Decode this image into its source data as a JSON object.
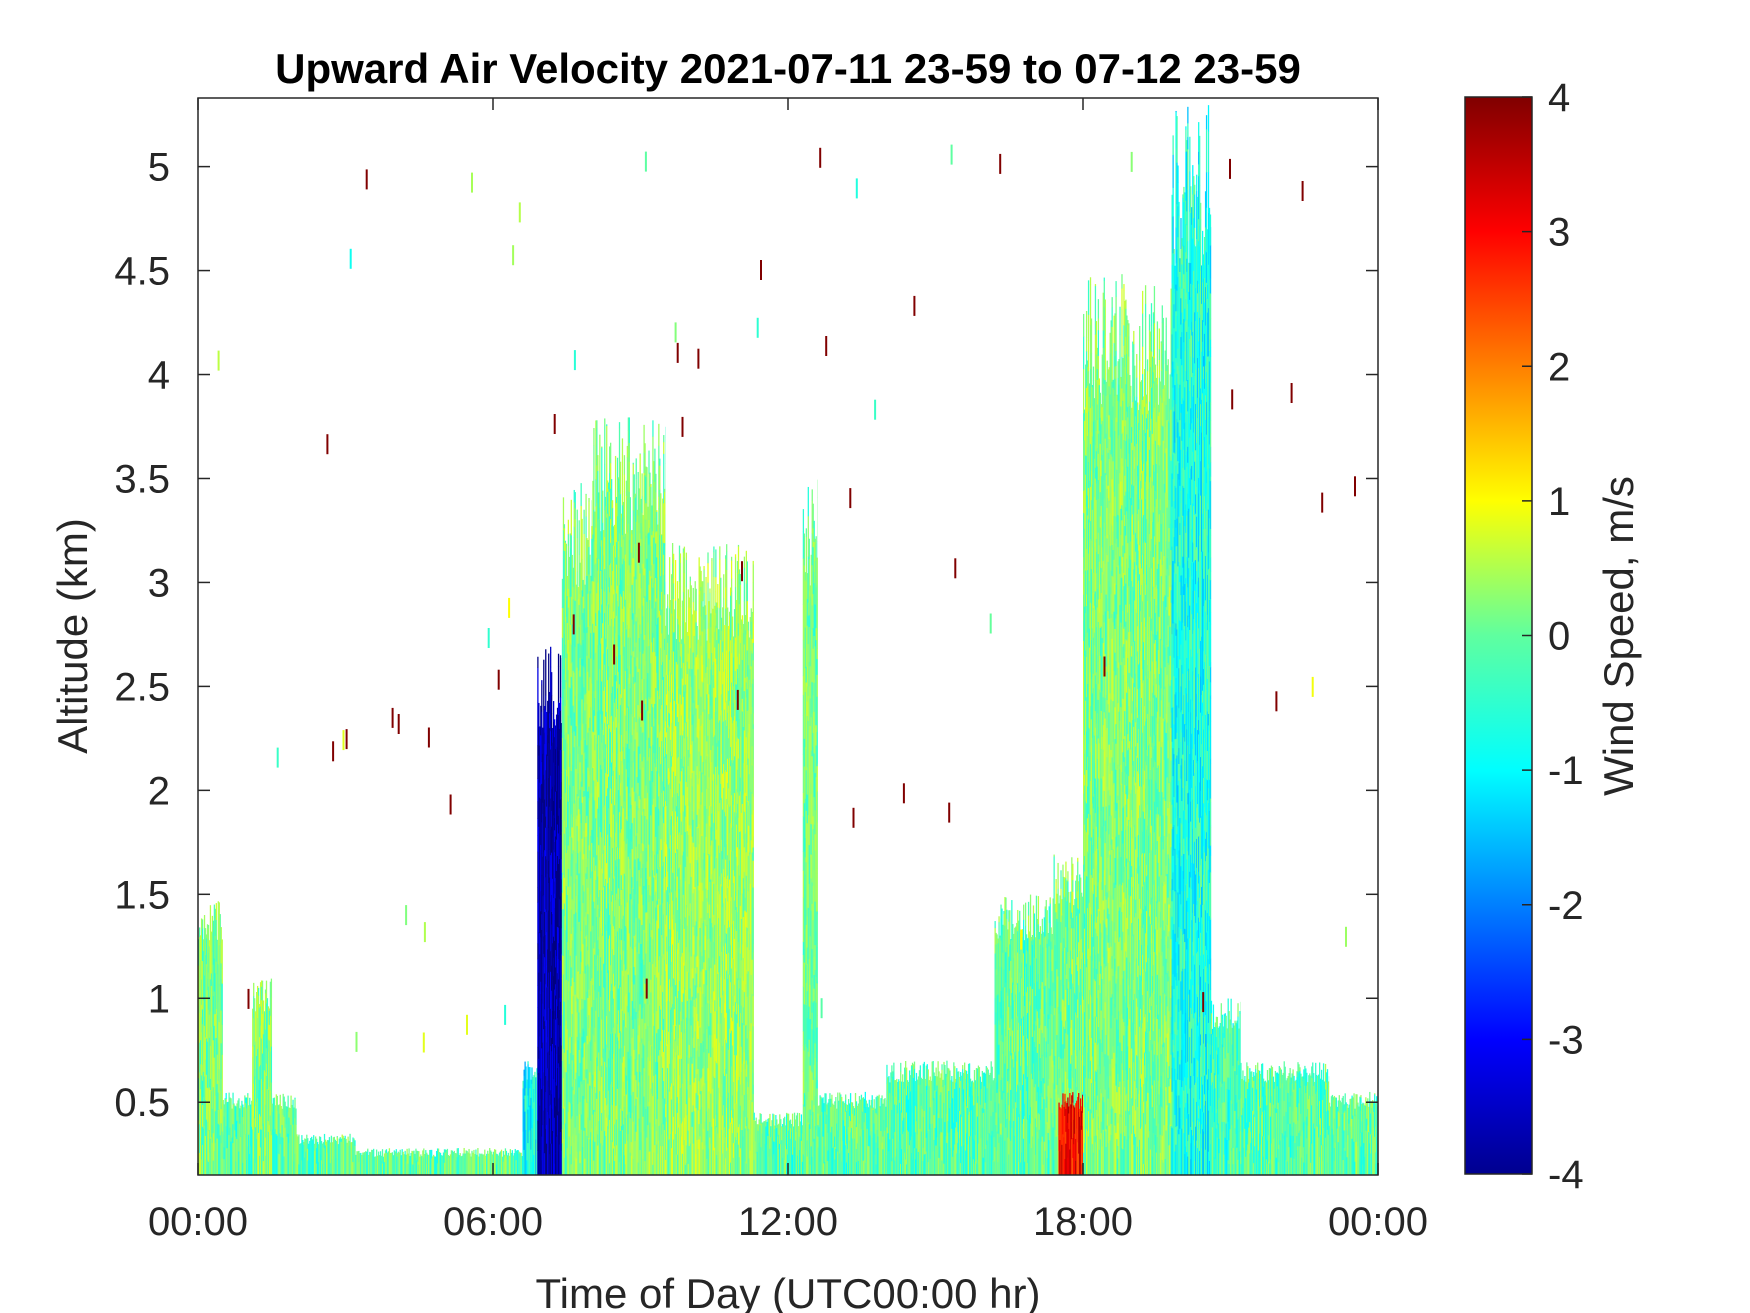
{
  "chart_data": {
    "type": "heatmap",
    "title": "Upward Air Velocity 2021-07-11 23-59 to 07-12 23-59",
    "xlabel": "Time of Day (UTC00:00 hr)",
    "ylabel": "Altitude (km)",
    "colorbar_label": "Wind Speed, m/s",
    "colormap": "jet",
    "xlim": [
      0,
      24
    ],
    "ylim": [
      0.15,
      5.33
    ],
    "clim": [
      -4,
      4
    ],
    "x_ticks": [
      0,
      6,
      12,
      18,
      24
    ],
    "x_tick_labels": [
      "00:00",
      "06:00",
      "12:00",
      "18:00",
      "00:00"
    ],
    "y_ticks": [
      0.5,
      1,
      1.5,
      2,
      2.5,
      3,
      3.5,
      4,
      4.5,
      5
    ],
    "y_tick_labels": [
      "0.5",
      "1",
      "1.5",
      "2",
      "2.5",
      "3",
      "3.5",
      "4",
      "4.5",
      "5"
    ],
    "c_ticks": [
      -4,
      -3,
      -2,
      -1,
      0,
      1,
      2,
      3,
      4
    ],
    "c_tick_labels": [
      "-4",
      "-3",
      "-2",
      "-1",
      "0",
      "1",
      "2",
      "3",
      "4"
    ],
    "grid": false,
    "regions": [
      {
        "x": [
          0.0,
          1.0
        ],
        "ymax": 0.55,
        "mean": -0.3
      },
      {
        "x": [
          1.0,
          2.0
        ],
        "ymax": 0.55,
        "mean": -0.3
      },
      {
        "x": [
          2.0,
          3.2
        ],
        "ymax": 0.35,
        "mean": -0.2
      },
      {
        "x": [
          3.2,
          6.6
        ],
        "ymax": 0.28,
        "mean": -0.2
      },
      {
        "x": [
          0.0,
          0.5
        ],
        "ymax": 1.5,
        "mean": 0.0
      },
      {
        "x": [
          1.1,
          1.5
        ],
        "ymax": 1.1,
        "mean": 0.0
      },
      {
        "x": [
          6.6,
          6.9
        ],
        "ymax": 0.7,
        "mean": -1.0
      },
      {
        "x": [
          6.9,
          7.4
        ],
        "ymax": 2.7,
        "mean": -3.7
      },
      {
        "x": [
          7.4,
          8.0
        ],
        "ymax": 3.5,
        "mean": 0.0
      },
      {
        "x": [
          8.0,
          9.5
        ],
        "ymax": 3.8,
        "mean": 0.0
      },
      {
        "x": [
          9.5,
          11.3
        ],
        "ymax": 3.2,
        "mean": 0.2
      },
      {
        "x": [
          11.3,
          12.6
        ],
        "ymax": 0.45,
        "mean": -0.3
      },
      {
        "x": [
          12.3,
          12.6
        ],
        "ymax": 3.5,
        "mean": -0.1
      },
      {
        "x": [
          12.6,
          14.0
        ],
        "ymax": 0.55,
        "mean": -0.3
      },
      {
        "x": [
          14.0,
          16.2
        ],
        "ymax": 0.7,
        "mean": -0.3
      },
      {
        "x": [
          16.2,
          17.4
        ],
        "ymax": 1.5,
        "mean": -0.2
      },
      {
        "x": [
          17.4,
          18.0
        ],
        "ymax": 1.7,
        "mean": 0.0
      },
      {
        "x": [
          17.5,
          18.0
        ],
        "ymax": 0.55,
        "mean": 3.0
      },
      {
        "x": [
          18.0,
          19.8
        ],
        "ymax": 4.5,
        "mean": 0.0
      },
      {
        "x": [
          19.8,
          20.6
        ],
        "ymax": 5.3,
        "mean": -0.8
      },
      {
        "x": [
          20.6,
          21.2
        ],
        "ymax": 1.0,
        "mean": -0.5
      },
      {
        "x": [
          21.2,
          23.0
        ],
        "ymax": 0.7,
        "mean": -0.3
      },
      {
        "x": [
          23.0,
          24.0
        ],
        "ymax": 0.55,
        "mean": -0.2
      }
    ]
  }
}
